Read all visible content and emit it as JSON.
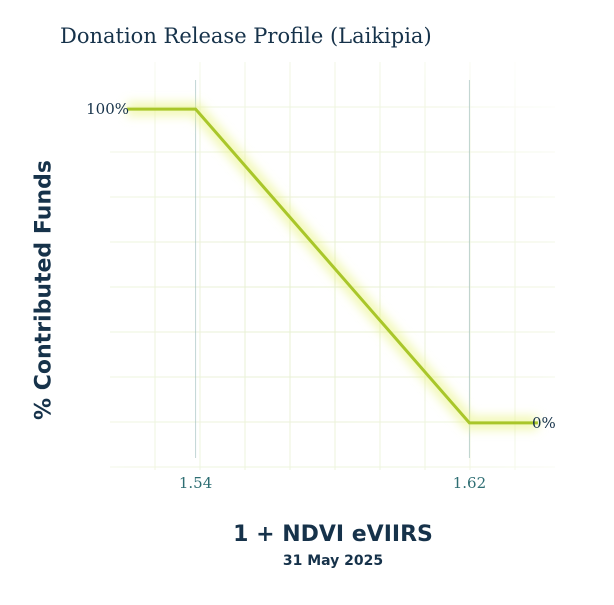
{
  "chart_data": {
    "type": "line",
    "title": "Donation Release Profile (Laikipia)",
    "xlabel": "1 + NDVI eVIIRS",
    "subtitle": "31 May 2025",
    "ylabel": "% Contributed Funds",
    "xlim": [
      1.515,
      1.645
    ],
    "ylim": [
      -15,
      115
    ],
    "x_ticks": [
      1.54,
      1.62
    ],
    "x_tick_labels": [
      "1.54",
      "1.62"
    ],
    "y_tick_labels": [
      {
        "value": 100,
        "label": "100%",
        "side": "left"
      },
      {
        "value": 0,
        "label": "0%",
        "side": "right"
      }
    ],
    "grid": true,
    "series": [
      {
        "x": [
          1.52,
          1.54,
          1.62,
          1.64
        ],
        "y": [
          100,
          100,
          0,
          0
        ],
        "color": "#a9c62a"
      }
    ],
    "threshold_lines_color": "#8fb3b3"
  }
}
